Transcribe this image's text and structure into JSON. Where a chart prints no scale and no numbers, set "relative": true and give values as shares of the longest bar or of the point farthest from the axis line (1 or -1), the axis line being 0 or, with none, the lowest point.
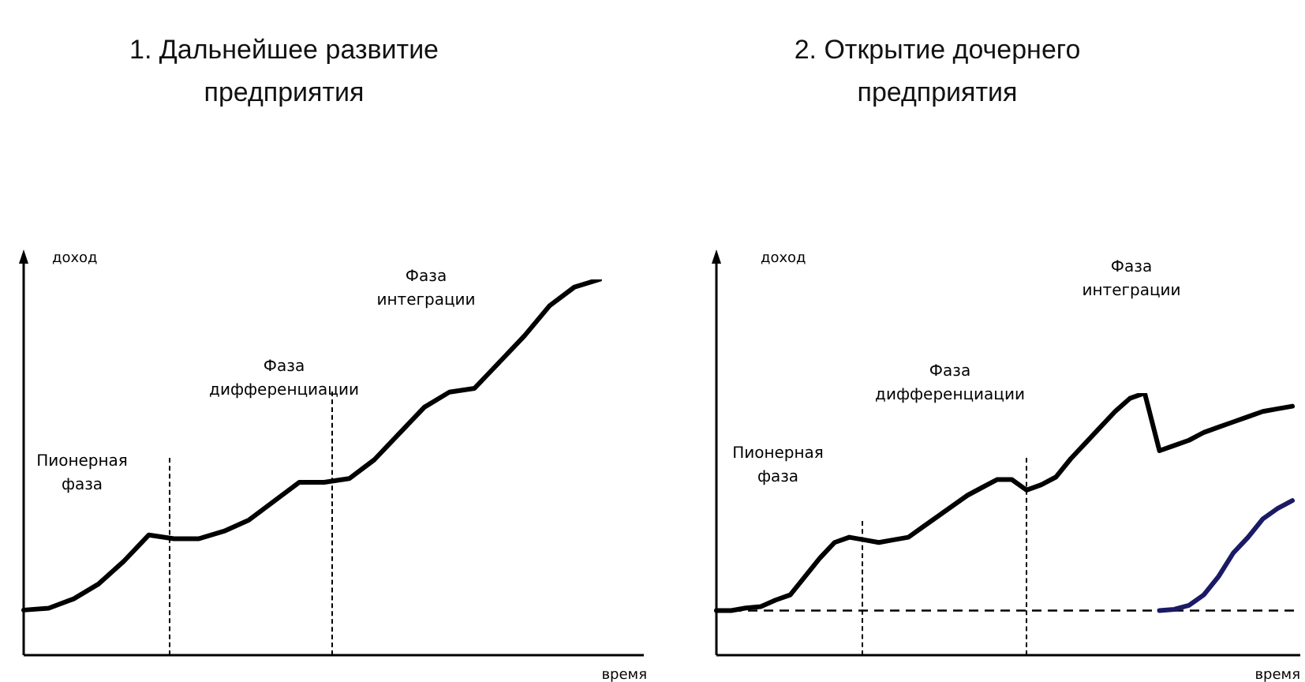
{
  "chart_data": [
    {
      "type": "line",
      "title": "1. Дальнейшее развитие предприятия",
      "xlabel": "время",
      "ylabel": "доход",
      "relative": true,
      "legend": false,
      "marker": "none",
      "line_style": "solid",
      "categories": [
        null,
        null,
        null,
        null,
        null,
        null,
        null,
        null,
        null,
        null,
        null,
        null,
        null,
        null,
        null,
        null,
        null,
        null,
        null,
        null,
        null,
        null,
        null,
        null
      ],
      "series": [
        {
          "color": "#000000",
          "values": [
            0.12,
            0.125,
            0.15,
            0.19,
            0.25,
            0.32,
            0.31,
            0.31,
            0.33,
            0.36,
            0.41,
            0.46,
            0.46,
            0.47,
            0.52,
            0.59,
            0.66,
            0.7,
            0.71,
            0.78,
            0.85,
            0.93,
            0.98,
            1.0
          ]
        }
      ],
      "annotations": [
        "Пионерная фаза",
        "Фаза дифференциации",
        "Фаза интеграции"
      ]
    },
    {
      "type": "line",
      "title": "2. Открытие дочернего предприятия",
      "xlabel": "время",
      "ylabel": "доход",
      "relative": true,
      "legend": false,
      "marker": "none",
      "line_style": "solid",
      "categories": [
        null,
        null,
        null,
        null,
        null,
        null,
        null,
        null,
        null,
        null,
        null,
        null,
        null,
        null,
        null,
        null,
        null,
        null,
        null,
        null,
        null,
        null,
        null,
        null,
        null,
        null,
        null,
        null,
        null,
        null,
        null,
        null,
        null,
        null,
        null,
        null,
        null,
        null,
        null,
        null
      ],
      "series": [
        {
          "color": "#000000",
          "values": [
            0.17,
            0.17,
            0.18,
            0.185,
            0.21,
            0.23,
            0.3,
            0.37,
            0.43,
            0.45,
            0.44,
            0.43,
            0.44,
            0.45,
            0.49,
            0.53,
            0.57,
            0.61,
            0.64,
            0.67,
            0.67,
            0.63,
            0.65,
            0.68,
            0.75,
            0.81,
            0.87,
            0.93,
            0.98,
            1.0,
            0.78,
            0.8,
            0.82,
            0.85,
            0.87,
            0.89,
            0.91,
            0.93,
            0.94,
            0.95
          ]
        },
        {
          "color": "#1a1a66",
          "values": [
            null,
            null,
            null,
            null,
            null,
            null,
            null,
            null,
            null,
            null,
            null,
            null,
            null,
            null,
            null,
            null,
            null,
            null,
            null,
            null,
            null,
            null,
            null,
            null,
            null,
            null,
            null,
            null,
            null,
            null,
            0.17,
            0.175,
            0.19,
            0.23,
            0.3,
            0.39,
            0.45,
            0.52,
            0.56,
            0.59
          ]
        }
      ],
      "ref_lines": [
        {
          "axis": "y",
          "value": 0.17,
          "line_style": "dashed",
          "color": "#000000"
        }
      ],
      "annotations": [
        "Пионерная фаза",
        "Фаза дифференциации",
        "Фаза интеграции"
      ]
    }
  ]
}
